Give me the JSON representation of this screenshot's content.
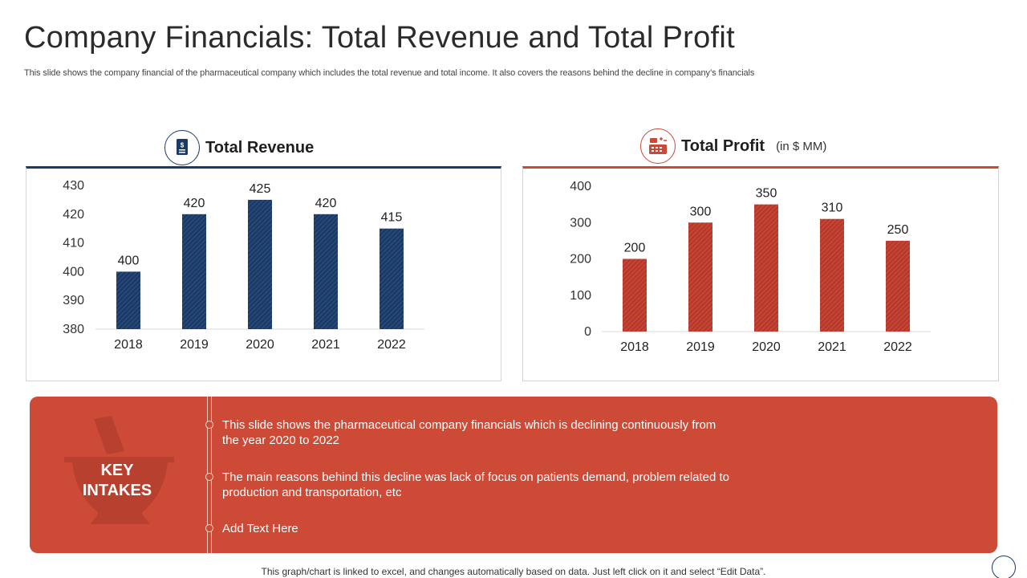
{
  "slide": {
    "title": "Company Financials: Total Revenue and Total Profit",
    "subtitle": "This slide shows the company financial of the pharmaceutical company which includes the total revenue and total income. It also covers the reasons behind the decline in company’s financials"
  },
  "revenue_panel": {
    "title": "Total Revenue",
    "icon": "document-dollar-icon",
    "accent": "#1c3a66"
  },
  "profit_panel": {
    "title": "Total Profit",
    "unit": "(in $ MM)",
    "icon": "cash-register-icon",
    "accent": "#c94a37"
  },
  "key_intakes": {
    "label_line1": "KEY",
    "label_line2": "INTAKES",
    "icon": "mortar-pestle-icon",
    "bullets": [
      "This slide shows the pharmaceutical company financials which is declining continuously from the year 2020 to 2022",
      "The main reasons behind this decline was lack of focus on patients demand, problem related to production and transportation, etc",
      "Add Text Here"
    ]
  },
  "footer": {
    "note": "This graph/chart is linked to excel, and changes automatically based on data. Just left click on it and select “Edit Data”."
  },
  "chart_data": [
    {
      "type": "bar",
      "title": "Total Revenue",
      "categories": [
        "2018",
        "2019",
        "2020",
        "2021",
        "2022"
      ],
      "values": [
        400,
        420,
        425,
        420,
        415
      ],
      "ylim": [
        380,
        430
      ],
      "yticks": [
        380,
        390,
        400,
        410,
        420,
        430
      ],
      "data_labels": true,
      "grid": false,
      "color": "#1c3a66"
    },
    {
      "type": "bar",
      "title": "Total Profit",
      "unit": "(in $ MM)",
      "categories": [
        "2018",
        "2019",
        "2020",
        "2021",
        "2022"
      ],
      "values": [
        200,
        300,
        350,
        310,
        250
      ],
      "ylim": [
        0,
        400
      ],
      "yticks": [
        0,
        100,
        200,
        300,
        400
      ],
      "data_labels": true,
      "grid": false,
      "color": "#c94a37"
    }
  ]
}
